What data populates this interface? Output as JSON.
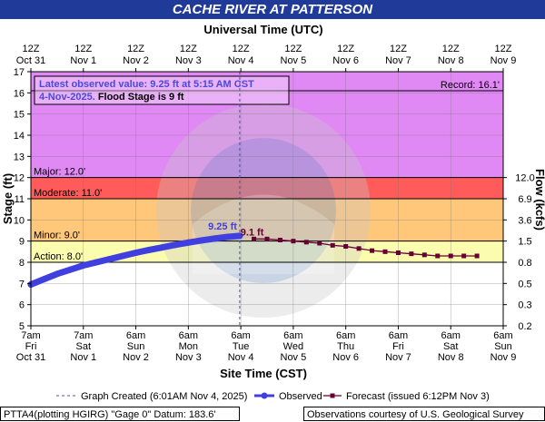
{
  "title": "CACHE RIVER AT PATTERSON",
  "chart_data": {
    "type": "line",
    "top_axis_title": "Universal Time (UTC)",
    "top_ticks": [
      {
        "hour": 0,
        "l1": "12Z",
        "l2": "Oct 31"
      },
      {
        "hour": 24,
        "l1": "12Z",
        "l2": "Nov 1"
      },
      {
        "hour": 48,
        "l1": "12Z",
        "l2": "Nov 2"
      },
      {
        "hour": 72,
        "l1": "12Z",
        "l2": "Nov 3"
      },
      {
        "hour": 96,
        "l1": "12Z",
        "l2": "Nov 4"
      },
      {
        "hour": 120,
        "l1": "12Z",
        "l2": "Nov 5"
      },
      {
        "hour": 144,
        "l1": "12Z",
        "l2": "Nov 6"
      },
      {
        "hour": 168,
        "l1": "12Z",
        "l2": "Nov 7"
      },
      {
        "hour": 192,
        "l1": "12Z",
        "l2": "Nov 8"
      },
      {
        "hour": 216,
        "l1": "12Z",
        "l2": "Nov 9"
      }
    ],
    "bottom_axis_title": "Site Time (CST)",
    "bottom_ticks": [
      {
        "hour": 0,
        "l1": "7am",
        "l2": "Fri",
        "l3": "Oct 31"
      },
      {
        "hour": 24,
        "l1": "7am",
        "l2": "Sat",
        "l3": "Nov 1"
      },
      {
        "hour": 48,
        "l1": "6am",
        "l2": "Sun",
        "l3": "Nov 2"
      },
      {
        "hour": 72,
        "l1": "6am",
        "l2": "Mon",
        "l3": "Nov 3"
      },
      {
        "hour": 96,
        "l1": "6am",
        "l2": "Tue",
        "l3": "Nov 4"
      },
      {
        "hour": 120,
        "l1": "6am",
        "l2": "Wed",
        "l3": "Nov 5"
      },
      {
        "hour": 144,
        "l1": "6am",
        "l2": "Thu",
        "l3": "Nov 6"
      },
      {
        "hour": 168,
        "l1": "6am",
        "l2": "Fri",
        "l3": "Nov 7"
      },
      {
        "hour": 192,
        "l1": "6am",
        "l2": "Sat",
        "l3": "Nov 8"
      },
      {
        "hour": 216,
        "l1": "6am",
        "l2": "Sun",
        "l3": "Nov 9"
      }
    ],
    "xlim_hours": [
      0,
      216
    ],
    "y_label": "Stage (ft)",
    "ylim": [
      5,
      17
    ],
    "y_ticks": [
      5,
      6,
      7,
      8,
      9,
      10,
      11,
      12,
      13,
      14,
      15,
      16,
      17
    ],
    "y2_label": "Flow (kcfs)",
    "y2_ticks": [
      {
        "stage": 5,
        "label": "0.2"
      },
      {
        "stage": 6,
        "label": "0.3"
      },
      {
        "stage": 7,
        "label": "0.5"
      },
      {
        "stage": 8,
        "label": "0.8"
      },
      {
        "stage": 9,
        "label": "1.5"
      },
      {
        "stage": 10,
        "label": "3.6"
      },
      {
        "stage": 11,
        "label": "6.9"
      },
      {
        "stage": 12,
        "label": "12.0"
      }
    ],
    "flood_bands": [
      {
        "name": "Record",
        "from": 16.1,
        "to": 17,
        "color": "#e088f4"
      },
      {
        "name": "Major",
        "from": 12,
        "to": 16.1,
        "color": "#e088f4"
      },
      {
        "name": "Moderate",
        "from": 11,
        "to": 12,
        "color": "#ff5b5b"
      },
      {
        "name": "Flood",
        "from": 9,
        "to": 11,
        "color": "#ffc77a"
      },
      {
        "name": "Action",
        "from": 8,
        "to": 9,
        "color": "#fcfcae"
      }
    ],
    "threshold_labels": [
      {
        "text": "Major: 12.0'",
        "stage": 12
      },
      {
        "text": "Moderate: 11.0'",
        "stage": 11
      },
      {
        "text": "Minor: 9.0'",
        "stage": 9
      },
      {
        "text": "Action: 8.0'",
        "stage": 8
      }
    ],
    "record_label": "Record: 16.1'",
    "record_stage": 16.1,
    "info_box": {
      "line1": "Latest observed value: 9.25 ft at 5:15 AM CST",
      "line2a": "4-Nov-2025.",
      "line2b": "Flood Stage is 9 ft"
    },
    "observed_peak_label": "9.25 ft",
    "forecast_peak_label": "9.1 ft",
    "graph_created_hour": 95.5,
    "observed": {
      "name": "Observed",
      "hours": [
        0,
        6,
        12,
        18,
        24,
        30,
        36,
        42,
        48,
        54,
        60,
        66,
        72,
        78,
        84,
        90,
        95.5
      ],
      "stages": [
        6.95,
        7.2,
        7.45,
        7.65,
        7.85,
        8.0,
        8.15,
        8.3,
        8.45,
        8.58,
        8.7,
        8.82,
        8.93,
        9.03,
        9.12,
        9.2,
        9.25
      ]
    },
    "forecast": {
      "name": "Forecast (issued 6:12PM Nov 3)",
      "hours": [
        102,
        108,
        114,
        120,
        126,
        132,
        138,
        144,
        150,
        156,
        162,
        168,
        174,
        180,
        186,
        192,
        198,
        204
      ],
      "stages": [
        9.1,
        9.1,
        9.05,
        9.0,
        8.95,
        8.9,
        8.8,
        8.75,
        8.65,
        8.55,
        8.5,
        8.45,
        8.4,
        8.35,
        8.3,
        8.3,
        8.3,
        8.3
      ]
    },
    "legend": {
      "graph_created": "Graph Created (6:01AM Nov 4, 2025)",
      "observed": "Observed",
      "forecast": "Forecast (issued 6:12PM Nov 3)"
    },
    "colors": {
      "observed": "#4040e0",
      "forecast": "#660033",
      "title_bg": "#1f3a99",
      "created_line": "#5050a0"
    }
  },
  "footer": {
    "left": "PTTA4(plotting HGIRG) \"Gage 0\" Datum: 183.6'",
    "right": "Observations courtesy of U.S. Geological Survey"
  }
}
